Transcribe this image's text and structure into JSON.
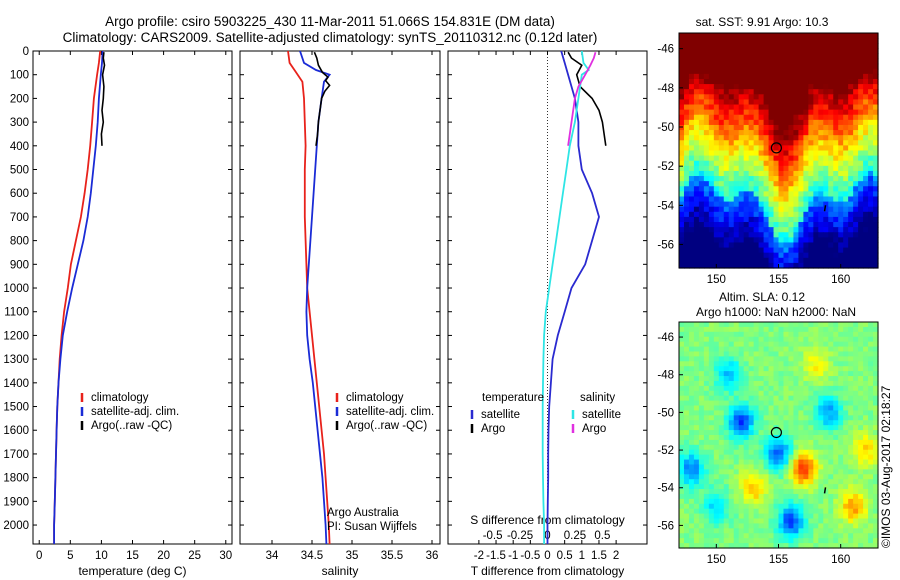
{
  "header": {
    "title_line1": "Argo profile: csiro 5903225_430 11-Mar-2011 51.066S 154.831E (DM data)",
    "title_line2": "Climatology: CARS2009. Satellite-adjusted climatology: synTS_20110312.nc (0.12d later)"
  },
  "colors": {
    "climatology": "#e8221b",
    "satellite": "#1a2bd6",
    "argo": "#000000",
    "temp_diff_satellite": "#2a2ad0",
    "sal_diff_satellite": "#2ee5e5",
    "sal_diff_argo": "#e030e0"
  },
  "chart_data": [
    {
      "type": "line",
      "id": "temperature",
      "xlabel": "temperature (deg C)",
      "ylabel": "",
      "xlim": [
        -1,
        31
      ],
      "ylim": [
        2080,
        0
      ],
      "xticks": [
        0,
        5,
        10,
        15,
        20,
        25,
        30
      ],
      "yticks": [
        0,
        100,
        200,
        300,
        400,
        500,
        600,
        700,
        800,
        900,
        1000,
        1100,
        1200,
        1300,
        1400,
        1500,
        1600,
        1700,
        1800,
        1900,
        2000
      ],
      "legend": [
        "climatology",
        "satellite-adj. clim.",
        "Argo(..raw -QC)"
      ],
      "legend_position": "lower-center",
      "series": [
        {
          "name": "climatology",
          "color_key": "climatology",
          "points": [
            [
              9.8,
              0
            ],
            [
              9.6,
              50
            ],
            [
              9.3,
              100
            ],
            [
              8.8,
              200
            ],
            [
              8.5,
              300
            ],
            [
              8.2,
              400
            ],
            [
              7.8,
              500
            ],
            [
              7.3,
              600
            ],
            [
              6.7,
              700
            ],
            [
              5.9,
              800
            ],
            [
              5.1,
              900
            ],
            [
              4.6,
              1000
            ],
            [
              4.0,
              1100
            ],
            [
              3.6,
              1200
            ],
            [
              3.3,
              1300
            ],
            [
              3.1,
              1400
            ],
            [
              2.9,
              1500
            ],
            [
              2.8,
              1600
            ],
            [
              2.7,
              1700
            ],
            [
              2.6,
              1800
            ],
            [
              2.5,
              1900
            ],
            [
              2.4,
              2000
            ],
            [
              2.4,
              2080
            ]
          ]
        },
        {
          "name": "satellite-adj. clim.",
          "color_key": "satellite",
          "points": [
            [
              10.2,
              0
            ],
            [
              10.1,
              50
            ],
            [
              9.9,
              100
            ],
            [
              9.6,
              200
            ],
            [
              9.4,
              300
            ],
            [
              9.1,
              400
            ],
            [
              8.7,
              500
            ],
            [
              8.3,
              600
            ],
            [
              7.8,
              700
            ],
            [
              7.1,
              800
            ],
            [
              6.2,
              900
            ],
            [
              5.3,
              1000
            ],
            [
              4.5,
              1100
            ],
            [
              3.8,
              1200
            ],
            [
              3.4,
              1300
            ],
            [
              3.1,
              1400
            ],
            [
              2.9,
              1500
            ],
            [
              2.8,
              1600
            ],
            [
              2.7,
              1700
            ],
            [
              2.6,
              1800
            ],
            [
              2.5,
              1900
            ],
            [
              2.4,
              2000
            ],
            [
              2.4,
              2080
            ]
          ]
        },
        {
          "name": "Argo(..raw -QC)",
          "color_key": "argo",
          "points": [
            [
              10.4,
              5
            ],
            [
              10.3,
              30
            ],
            [
              10.5,
              60
            ],
            [
              10.2,
              100
            ],
            [
              10.4,
              150
            ],
            [
              10.3,
              200
            ],
            [
              10.1,
              250
            ],
            [
              10.3,
              300
            ],
            [
              10.0,
              350
            ],
            [
              10.1,
              400
            ]
          ]
        }
      ]
    },
    {
      "type": "line",
      "id": "salinity",
      "xlabel": "salinity",
      "ylabel": "",
      "xlim": [
        33.6,
        36.1
      ],
      "ylim": [
        2080,
        0
      ],
      "xticks": [
        34,
        34.5,
        35,
        35.5,
        36
      ],
      "xtick_labels": [
        "34",
        "34.5",
        "35",
        "35.5",
        "36"
      ],
      "legend": [
        "climatology",
        "satellite-adj. clim.",
        "Argo(..raw -QC)"
      ],
      "legend_position": "lower-right",
      "annotation": [
        "Argo Australia",
        "PI: Susan Wijffels"
      ],
      "series": [
        {
          "name": "climatology",
          "color_key": "climatology",
          "points": [
            [
              34.2,
              0
            ],
            [
              34.22,
              50
            ],
            [
              34.3,
              90
            ],
            [
              34.38,
              130
            ],
            [
              34.4,
              200
            ],
            [
              34.41,
              300
            ],
            [
              34.42,
              400
            ],
            [
              34.41,
              500
            ],
            [
              34.41,
              600
            ],
            [
              34.41,
              700
            ],
            [
              34.42,
              800
            ],
            [
              34.43,
              900
            ],
            [
              34.44,
              1000
            ],
            [
              34.47,
              1100
            ],
            [
              34.5,
              1200
            ],
            [
              34.53,
              1300
            ],
            [
              34.56,
              1400
            ],
            [
              34.59,
              1500
            ],
            [
              34.62,
              1600
            ],
            [
              34.65,
              1700
            ],
            [
              34.67,
              1800
            ],
            [
              34.69,
              1900
            ],
            [
              34.71,
              2000
            ],
            [
              34.72,
              2080
            ]
          ]
        },
        {
          "name": "satellite-adj. clim.",
          "color_key": "satellite",
          "points": [
            [
              34.35,
              0
            ],
            [
              34.4,
              50
            ],
            [
              34.55,
              80
            ],
            [
              34.72,
              100
            ],
            [
              34.65,
              130
            ],
            [
              34.62,
              200
            ],
            [
              34.58,
              300
            ],
            [
              34.56,
              400
            ],
            [
              34.54,
              500
            ],
            [
              34.52,
              600
            ],
            [
              34.5,
              700
            ],
            [
              34.48,
              800
            ],
            [
              34.46,
              900
            ],
            [
              34.44,
              1000
            ],
            [
              34.43,
              1100
            ],
            [
              34.44,
              1200
            ],
            [
              34.47,
              1300
            ],
            [
              34.51,
              1400
            ],
            [
              34.54,
              1500
            ],
            [
              34.57,
              1600
            ],
            [
              34.6,
              1700
            ],
            [
              34.63,
              1800
            ],
            [
              34.65,
              1900
            ],
            [
              34.67,
              2000
            ],
            [
              34.68,
              2080
            ]
          ]
        },
        {
          "name": "Argo(..raw -QC)",
          "color_key": "argo",
          "points": [
            [
              34.53,
              5
            ],
            [
              34.56,
              30
            ],
            [
              34.58,
              60
            ],
            [
              34.63,
              90
            ],
            [
              34.7,
              110
            ],
            [
              34.67,
              125
            ],
            [
              34.72,
              145
            ],
            [
              34.66,
              170
            ],
            [
              34.62,
              200
            ],
            [
              34.6,
              250
            ],
            [
              34.58,
              300
            ],
            [
              34.57,
              350
            ],
            [
              34.55,
              400
            ]
          ]
        }
      ]
    },
    {
      "type": "line",
      "id": "differences",
      "xlabel": "T difference from climatology",
      "xlabel_top": "S difference from climatology",
      "xlim": [
        -2.9,
        2.9
      ],
      "ylim": [
        2080,
        0
      ],
      "xticks": [
        -2,
        -1.5,
        -1,
        -0.5,
        0,
        0.5,
        1,
        1.5,
        2
      ],
      "xtick_labels": [
        "-2",
        "-1.5",
        "-1",
        "-0.5",
        "0",
        "0.5",
        "1",
        "1.5",
        "2"
      ],
      "secondary_xticks_labels": [
        "-0.5",
        "-0.25",
        "0",
        "0.25",
        "0.5"
      ],
      "legend_left_title": "temperature",
      "legend_right_title": "salinity",
      "legend_left": [
        "satellite",
        "Argo"
      ],
      "legend_right": [
        "satellite",
        "Argo"
      ],
      "series": [
        {
          "name": "temperature satellite",
          "color_key": "temp_diff_satellite",
          "points": [
            [
              0.4,
              0
            ],
            [
              0.5,
              50
            ],
            [
              0.6,
              100
            ],
            [
              0.8,
              200
            ],
            [
              0.9,
              300
            ],
            [
              0.9,
              400
            ],
            [
              1.0,
              500
            ],
            [
              1.3,
              600
            ],
            [
              1.5,
              700
            ],
            [
              1.3,
              800
            ],
            [
              1.1,
              900
            ],
            [
              0.7,
              1000
            ],
            [
              0.5,
              1100
            ],
            [
              0.3,
              1200
            ],
            [
              0.15,
              1300
            ],
            [
              0.1,
              1400
            ],
            [
              0.05,
              1500
            ],
            [
              0.03,
              1600
            ],
            [
              0.02,
              1700
            ],
            [
              0.02,
              1800
            ],
            [
              0.01,
              1900
            ],
            [
              0.0,
              2000
            ],
            [
              0.0,
              2080
            ]
          ]
        },
        {
          "name": "temperature Argo",
          "color_key": "argo",
          "points": [
            [
              0.6,
              5
            ],
            [
              0.7,
              30
            ],
            [
              1.0,
              60
            ],
            [
              0.85,
              100
            ],
            [
              0.95,
              150
            ],
            [
              1.3,
              200
            ],
            [
              1.5,
              250
            ],
            [
              1.6,
              300
            ],
            [
              1.65,
              350
            ],
            [
              1.7,
              400
            ]
          ]
        },
        {
          "name": "salinity satellite",
          "color_key": "sal_diff_satellite",
          "points": [
            [
              1.0,
              0
            ],
            [
              1.05,
              50
            ],
            [
              1.2,
              80
            ],
            [
              1.0,
              100
            ],
            [
              0.9,
              200
            ],
            [
              0.8,
              300
            ],
            [
              0.65,
              400
            ],
            [
              0.55,
              500
            ],
            [
              0.45,
              600
            ],
            [
              0.35,
              700
            ],
            [
              0.25,
              800
            ],
            [
              0.15,
              900
            ],
            [
              0.05,
              1000
            ],
            [
              -0.05,
              1100
            ],
            [
              -0.1,
              1200
            ],
            [
              -0.12,
              1300
            ],
            [
              -0.13,
              1400
            ],
            [
              -0.14,
              1500
            ],
            [
              -0.14,
              1600
            ],
            [
              -0.14,
              1700
            ],
            [
              -0.13,
              1800
            ],
            [
              -0.12,
              1900
            ],
            [
              -0.1,
              2000
            ],
            [
              -0.1,
              2080
            ]
          ]
        },
        {
          "name": "salinity Argo",
          "color_key": "sal_diff_argo",
          "points": [
            [
              1.4,
              5
            ],
            [
              1.35,
              30
            ],
            [
              1.25,
              60
            ],
            [
              1.1,
              100
            ],
            [
              0.9,
              150
            ],
            [
              0.8,
              200
            ],
            [
              0.75,
              250
            ],
            [
              0.7,
              300
            ],
            [
              0.65,
              350
            ],
            [
              0.6,
              400
            ]
          ]
        }
      ]
    },
    {
      "type": "heatmap",
      "id": "sst_map",
      "title": "sat. SST: 9.91  Argo: 10.3",
      "xlim": [
        147,
        163
      ],
      "ylim": [
        -57.2,
        -45.2
      ],
      "xticks": [
        150,
        155,
        160
      ],
      "yticks": [
        -46,
        -48,
        -50,
        -52,
        -54,
        -56
      ],
      "marker": {
        "x": 154.831,
        "y": -51.066
      },
      "note": "SST field, warm north (red/orange) to cold south (dark blue)"
    },
    {
      "type": "heatmap",
      "id": "sla_map",
      "title_line1": "Altim. SLA: 0.12",
      "title_line2": "Argo h1000: NaN h2000: NaN",
      "xlim": [
        147,
        163
      ],
      "ylim": [
        -57.2,
        -45.2
      ],
      "xticks": [
        150,
        155,
        160
      ],
      "yticks": [
        -46,
        -48,
        -50,
        -52,
        -54,
        -56
      ],
      "marker": {
        "x": 154.831,
        "y": -51.066
      }
    }
  ],
  "footer": {
    "credit": "©IMOS 03-Aug-2017 02:18:27"
  }
}
